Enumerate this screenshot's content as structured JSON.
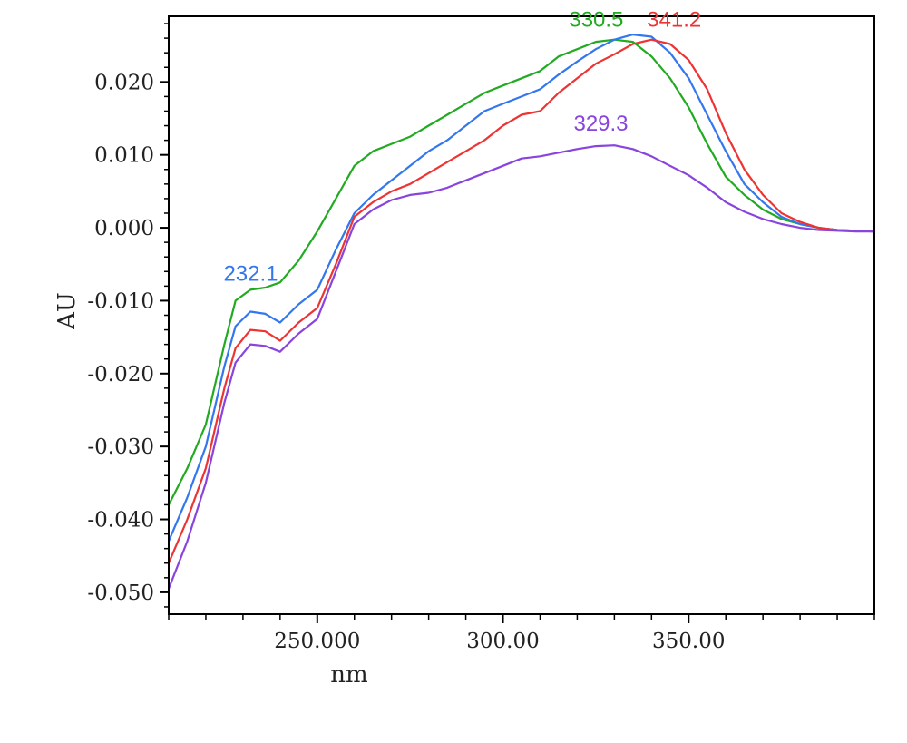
{
  "chart_data": {
    "type": "line",
    "xlabel": "nm",
    "ylabel": "AU",
    "xlim": [
      210,
      400
    ],
    "ylim": [
      -0.053,
      0.029
    ],
    "x_ticks": [
      250,
      300,
      350
    ],
    "x_tick_labels": [
      "250.000",
      "300.00",
      "350.00"
    ],
    "y_ticks": [
      -0.05,
      -0.04,
      -0.03,
      -0.02,
      -0.01,
      0.0,
      0.01,
      0.02
    ],
    "y_tick_labels": [
      "-0.050",
      "-0.040",
      "-0.030",
      "-0.020",
      "-0.010",
      "0.000",
      "0.010",
      "0.020"
    ],
    "grid": false,
    "series": [
      {
        "color": "#22aa22",
        "x": [
          210,
          215,
          220,
          225,
          228,
          232,
          236,
          240,
          245,
          250,
          255,
          260,
          265,
          270,
          275,
          280,
          285,
          290,
          295,
          300,
          305,
          310,
          315,
          320,
          325,
          330,
          335,
          340,
          345,
          350,
          355,
          360,
          365,
          370,
          375,
          380,
          385,
          390,
          395,
          400
        ],
        "y": [
          -0.038,
          -0.033,
          -0.027,
          -0.016,
          -0.01,
          -0.0085,
          -0.0082,
          -0.0075,
          -0.0045,
          -0.0005,
          0.004,
          0.0085,
          0.0105,
          0.0115,
          0.0125,
          0.014,
          0.0155,
          0.017,
          0.0185,
          0.0195,
          0.0205,
          0.0215,
          0.0235,
          0.0245,
          0.0255,
          0.0258,
          0.0255,
          0.0235,
          0.0205,
          0.0165,
          0.0115,
          0.007,
          0.0045,
          0.0025,
          0.0012,
          0.0005,
          0.0,
          -0.0003,
          -0.0004,
          -0.0005
        ]
      },
      {
        "color": "#3377ee",
        "x": [
          210,
          215,
          220,
          225,
          228,
          232,
          236,
          240,
          245,
          250,
          255,
          260,
          265,
          270,
          275,
          280,
          285,
          290,
          295,
          300,
          305,
          310,
          315,
          320,
          325,
          330,
          335,
          340,
          345,
          350,
          355,
          360,
          365,
          370,
          375,
          380,
          385,
          390,
          395,
          400
        ],
        "y": [
          -0.043,
          -0.037,
          -0.03,
          -0.019,
          -0.0135,
          -0.0115,
          -0.0118,
          -0.013,
          -0.0105,
          -0.0085,
          -0.003,
          0.002,
          0.0045,
          0.0065,
          0.0085,
          0.0105,
          0.012,
          0.014,
          0.016,
          0.017,
          0.018,
          0.019,
          0.021,
          0.0228,
          0.0245,
          0.0258,
          0.0265,
          0.0262,
          0.024,
          0.0205,
          0.0155,
          0.0105,
          0.006,
          0.0035,
          0.0015,
          0.0005,
          0.0,
          -0.0003,
          -0.0004,
          -0.0005
        ]
      },
      {
        "color": "#ee3333",
        "x": [
          210,
          215,
          220,
          225,
          228,
          232,
          236,
          240,
          245,
          250,
          255,
          260,
          265,
          270,
          275,
          280,
          285,
          290,
          295,
          300,
          305,
          310,
          315,
          320,
          325,
          330,
          335,
          340,
          345,
          350,
          355,
          360,
          365,
          370,
          375,
          380,
          385,
          390,
          395,
          400
        ],
        "y": [
          -0.046,
          -0.04,
          -0.033,
          -0.022,
          -0.0165,
          -0.014,
          -0.0142,
          -0.0155,
          -0.013,
          -0.011,
          -0.005,
          0.0015,
          0.0035,
          0.005,
          0.006,
          0.0075,
          0.009,
          0.0105,
          0.012,
          0.014,
          0.0155,
          0.016,
          0.0185,
          0.0205,
          0.0225,
          0.0238,
          0.0252,
          0.0258,
          0.0252,
          0.023,
          0.019,
          0.013,
          0.008,
          0.0045,
          0.002,
          0.0008,
          0.0,
          -0.0003,
          -0.0004,
          -0.0005
        ]
      },
      {
        "color": "#8844dd",
        "x": [
          210,
          215,
          220,
          225,
          228,
          232,
          236,
          240,
          245,
          250,
          255,
          260,
          265,
          270,
          275,
          280,
          285,
          290,
          295,
          300,
          305,
          310,
          315,
          320,
          325,
          330,
          335,
          340,
          345,
          350,
          355,
          360,
          365,
          370,
          375,
          380,
          385,
          390,
          395,
          400
        ],
        "y": [
          -0.0495,
          -0.043,
          -0.035,
          -0.024,
          -0.0185,
          -0.016,
          -0.0162,
          -0.017,
          -0.0145,
          -0.0125,
          -0.006,
          0.0005,
          0.0025,
          0.0038,
          0.0045,
          0.0048,
          0.0055,
          0.0065,
          0.0075,
          0.0085,
          0.0095,
          0.0098,
          0.0103,
          0.0108,
          0.0112,
          0.0113,
          0.0108,
          0.0098,
          0.0085,
          0.0072,
          0.0055,
          0.0035,
          0.0022,
          0.0012,
          0.0005,
          0.0,
          -0.0003,
          -0.0004,
          -0.0005,
          -0.0005
        ]
      }
    ],
    "annotations": [
      {
        "text": "232.1",
        "x": 232.1,
        "y": -0.0085,
        "color": "#3377ee"
      },
      {
        "text": "330.5",
        "x": 330.5,
        "y": 0.0258,
        "color": "#22aa22"
      },
      {
        "text": "341.2",
        "x": 341.2,
        "y": 0.0258,
        "color": "#ee3333"
      },
      {
        "text": "329.3",
        "x": 329.3,
        "y": 0.0113,
        "color": "#8844dd"
      }
    ]
  }
}
